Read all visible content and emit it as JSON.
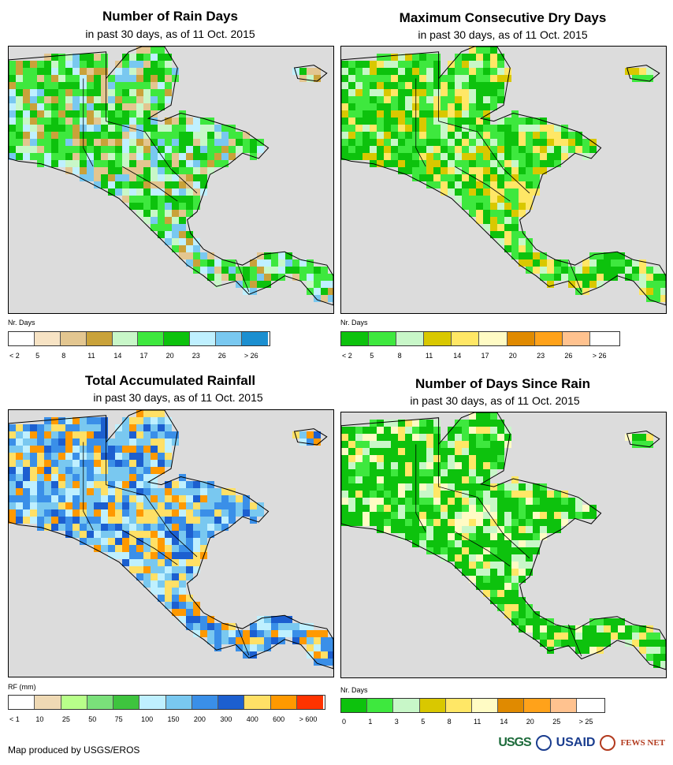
{
  "panels": [
    {
      "title": "Number of Rain Days",
      "subtitle": "in past 30 days, as of 11 Oct. 2015",
      "legend_label": "Nr. Days",
      "legend_colors": [
        "#ffffff",
        "#f7e3c4",
        "#e3c690",
        "#c9a23a",
        "#c8f7c8",
        "#3ee83e",
        "#0dc20d",
        "#bff0ff",
        "#79c8f0",
        "#1c8fd0"
      ],
      "legend_ticks": [
        "< 2",
        "5",
        "8",
        "11",
        "14",
        "17",
        "20",
        "23",
        "26",
        "> 26"
      ],
      "map_palette": [
        "#3ee83e",
        "#0dc20d",
        "#0dc20d",
        "#3ee83e",
        "#c8f7c8",
        "#79c8f0",
        "#bff0ff",
        "#c9a23a",
        "#e3c690"
      ]
    },
    {
      "title": "Maximum Consecutive Dry Days",
      "subtitle": "in past 30 days, as of 11 Oct. 2015",
      "legend_label": "Nr. Days",
      "legend_colors": [
        "#0dc20d",
        "#3ee83e",
        "#c8f7c8",
        "#d9c800",
        "#ffe766",
        "#fffbc4",
        "#e08a00",
        "#ffa21a",
        "#ffc28f",
        "#ffffff"
      ],
      "legend_ticks": [
        "< 2",
        "5",
        "8",
        "11",
        "14",
        "17",
        "20",
        "23",
        "26",
        "> 26"
      ],
      "map_palette": [
        "#0dc20d",
        "#0dc20d",
        "#3ee83e",
        "#3ee83e",
        "#c8f7c8",
        "#d9c800",
        "#ffe766"
      ]
    },
    {
      "title": "Total Accumulated Rainfall",
      "subtitle": "in past 30 days, as of 11 Oct. 2015",
      "legend_label": "RF (mm)",
      "legend_colors": [
        "#ffffff",
        "#efd9b4",
        "#b8ff8a",
        "#7ae07a",
        "#3ec43e",
        "#bff0ff",
        "#79c8f0",
        "#3a8fe8",
        "#1c5fd0",
        "#ffe066",
        "#ff9900",
        "#ff3300"
      ],
      "legend_ticks": [
        "< 1",
        "10",
        "25",
        "50",
        "75",
        "100",
        "150",
        "200",
        "300",
        "400",
        "600",
        "> 600"
      ],
      "map_palette": [
        "#3a8fe8",
        "#3a8fe8",
        "#1c5fd0",
        "#79c8f0",
        "#79c8f0",
        "#bff0ff",
        "#ffe066",
        "#ff9900"
      ]
    },
    {
      "title": "Number of Days Since Rain",
      "subtitle": "in past 30 days, as of 11 Oct. 2015",
      "legend_label": "Nr. Days",
      "legend_colors": [
        "#0dc20d",
        "#3ee83e",
        "#c8f7c8",
        "#d9c800",
        "#ffe766",
        "#fffbc4",
        "#e08a00",
        "#ffa21a",
        "#ffc28f",
        "#ffffff"
      ],
      "legend_ticks": [
        "0",
        "1",
        "3",
        "5",
        "8",
        "11",
        "14",
        "20",
        "25",
        "> 25"
      ],
      "map_palette": [
        "#0dc20d",
        "#0dc20d",
        "#0dc20d",
        "#0dc20d",
        "#3ee83e",
        "#c8f7c8",
        "#ffe766",
        "#fffbc4"
      ]
    }
  ],
  "footer": "Map produced by USGS/EROS",
  "logos": {
    "usgs": "USGS",
    "usaid": "USAID",
    "fews": "FEWS NET"
  }
}
